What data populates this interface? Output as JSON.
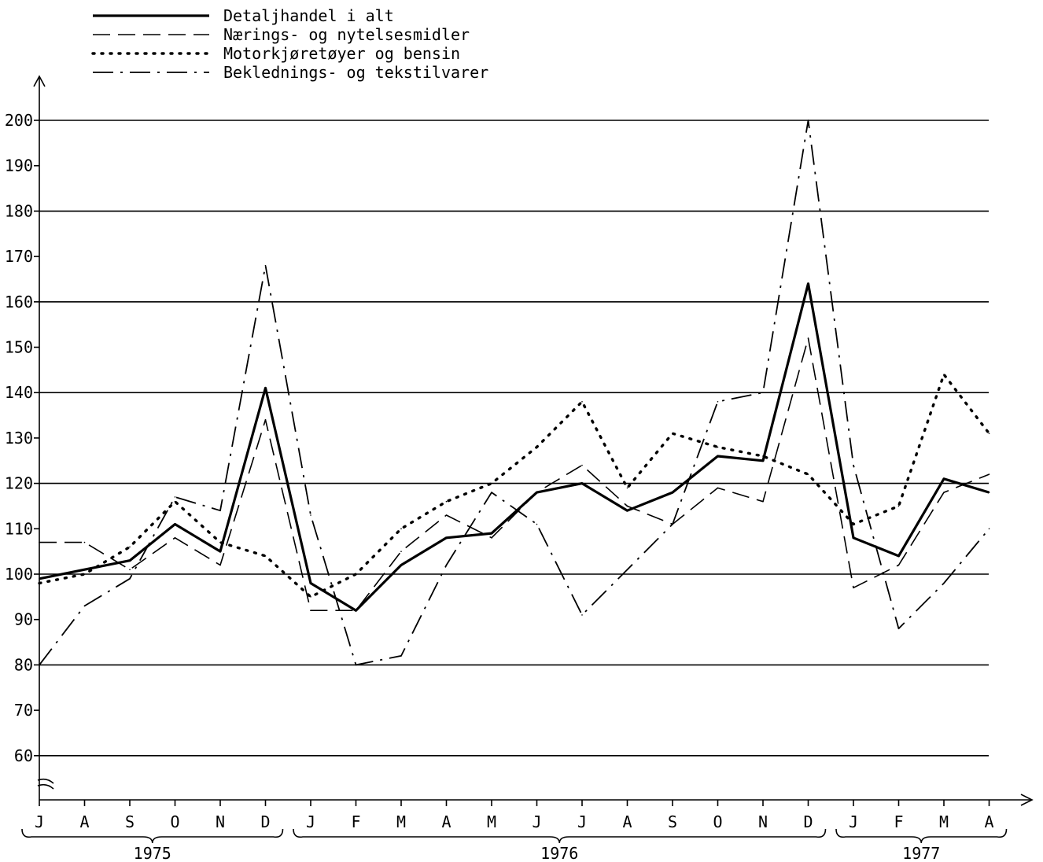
{
  "chart_data": {
    "type": "line",
    "title": "",
    "xlabel": "",
    "ylabel": "",
    "ylim": [
      50,
      205
    ],
    "y_ticks": [
      60,
      70,
      80,
      90,
      100,
      110,
      120,
      130,
      140,
      150,
      160,
      170,
      180,
      190,
      200
    ],
    "y_gridlines": [
      60,
      80,
      100,
      120,
      140,
      160,
      180,
      200
    ],
    "y_axis_break": true,
    "legend_position": "top-left",
    "categories": [
      "J",
      "A",
      "S",
      "O",
      "N",
      "D",
      "J",
      "F",
      "M",
      "A",
      "M",
      "J",
      "J",
      "A",
      "S",
      "O",
      "N",
      "D",
      "J",
      "F",
      "M",
      "A"
    ],
    "year_groups": [
      {
        "label": "1975",
        "start": 0,
        "end": 5
      },
      {
        "label": "1976",
        "start": 6,
        "end": 17
      },
      {
        "label": "1977",
        "start": 18,
        "end": 21
      }
    ],
    "series": [
      {
        "name": "Detaljhandel i alt",
        "style": "solid",
        "values": [
          99,
          101,
          103,
          111,
          105,
          141,
          98,
          92,
          102,
          108,
          109,
          118,
          120,
          114,
          118,
          126,
          125,
          164,
          108,
          104,
          121,
          118
        ]
      },
      {
        "name": "Nærings- og nytelsesmidler",
        "style": "dashed",
        "values": [
          107,
          107,
          101,
          108,
          102,
          134,
          92,
          92,
          105,
          113,
          108,
          118,
          124,
          115,
          111,
          119,
          116,
          152,
          97,
          102,
          118,
          122
        ]
      },
      {
        "name": "Motorkjøretøyer og bensin",
        "style": "dotted",
        "values": [
          98,
          100,
          106,
          116,
          107,
          104,
          95,
          100,
          110,
          116,
          120,
          128,
          138,
          119,
          131,
          128,
          126,
          122,
          111,
          115,
          144,
          131
        ]
      },
      {
        "name": "Beklednings- og tekstilvarer",
        "style": "dashdot",
        "values": [
          80,
          93,
          99,
          117,
          114,
          168,
          113,
          80,
          82,
          102,
          118,
          111,
          91,
          101,
          111,
          138,
          140,
          200,
          124,
          88,
          98,
          110
        ]
      }
    ]
  }
}
